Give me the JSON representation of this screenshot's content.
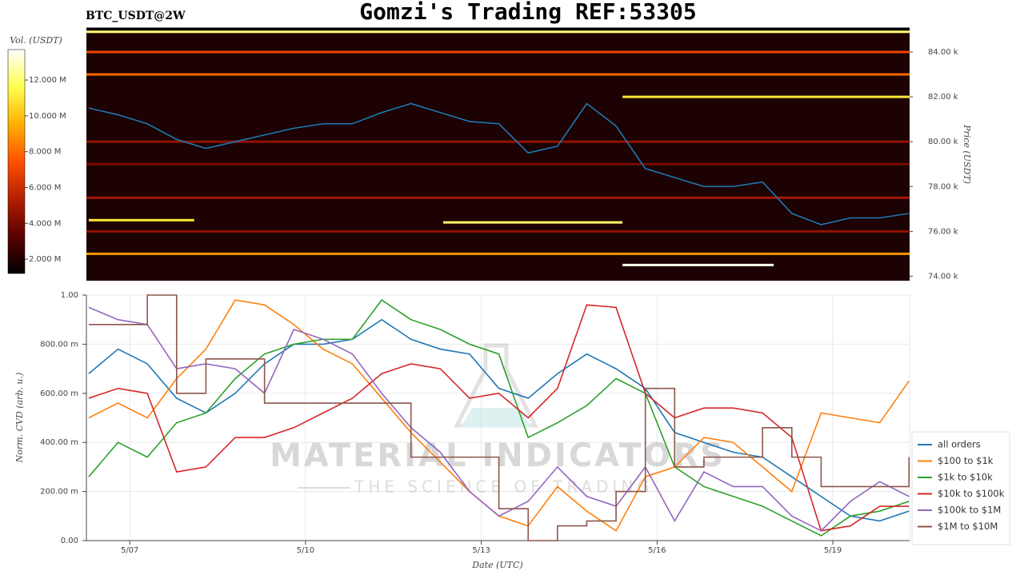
{
  "title": "Gomzi's Trading REF:53305",
  "chart_data": [
    {
      "type": "heatmap",
      "title": "BTC_USDT@2W",
      "y_label": "Price (USDT)",
      "colorbar_label": "Vol. (USDT)",
      "xlim": [
        6.26,
        20.31
      ],
      "ylim": [
        73800,
        85000
      ],
      "yticks": [
        {
          "value": 74000,
          "label": "74.00 k"
        },
        {
          "value": 76000,
          "label": "76.00 k"
        },
        {
          "value": 78000,
          "label": "78.00 k"
        },
        {
          "value": 80000,
          "label": "80.00 k"
        },
        {
          "value": 82000,
          "label": "82.00 k"
        },
        {
          "value": 84000,
          "label": "84.00 k"
        }
      ],
      "clim": [
        1200000,
        13700000
      ],
      "cticks": [
        {
          "value": 2000000,
          "label": "2.000 M"
        },
        {
          "value": 4000000,
          "label": "4.000 M"
        },
        {
          "value": 6000000,
          "label": "6.000 M"
        },
        {
          "value": 8000000,
          "label": "8.000 M"
        },
        {
          "value": 10000000,
          "label": "10.000 M"
        },
        {
          "value": 12000000,
          "label": "12.000 M"
        }
      ],
      "colormap": [
        "#000000",
        "#5a0000",
        "#b41e00",
        "#ff5000",
        "#ffb000",
        "#ffff50",
        "#ffffff"
      ],
      "background": "#1c0202",
      "walls": {
        "price": [
          84900,
          84000,
          83000,
          82000,
          80000,
          79000,
          77500,
          76500,
          76400,
          76000,
          75000,
          74500
        ],
        "start": [
          6.26,
          6.26,
          6.26,
          15.41,
          6.26,
          6.26,
          6.26,
          6.3,
          12.35,
          6.26,
          6.26,
          15.41
        ],
        "end": [
          20.31,
          20.31,
          20.31,
          20.31,
          20.31,
          20.31,
          20.31,
          8.1,
          15.41,
          20.31,
          20.31,
          17.99
        ],
        "volume": [
          12000000,
          7000000,
          8000000,
          11000000,
          4500000,
          4000000,
          5000000,
          11000000,
          12000000,
          4500000,
          9000000,
          13500000
        ]
      },
      "x": [
        6.3,
        6.8,
        7.3,
        7.8,
        8.3,
        8.8,
        9.3,
        9.8,
        10.3,
        10.8,
        11.3,
        11.8,
        12.3,
        12.8,
        13.3,
        13.8,
        14.3,
        14.8,
        15.3,
        15.8,
        16.3,
        16.8,
        17.3,
        17.8,
        18.3,
        18.8,
        19.3,
        19.8,
        20.3
      ],
      "series": [
        {
          "color": "#1f77b4",
          "values": [
            81500,
            81200,
            80800,
            80100,
            79700,
            80000,
            80300,
            80600,
            80800,
            80800,
            81300,
            81700,
            81300,
            80900,
            80800,
            79500,
            79800,
            81700,
            80700,
            78800,
            78400,
            78000,
            78000,
            78200,
            76800,
            76300,
            76600,
            76600,
            76800
          ]
        }
      ]
    },
    {
      "type": "line",
      "x_label": "Date (UTC)",
      "y_label": "Norm. CVD (arb. u.)",
      "grid": true,
      "legend": "right",
      "watermark": {
        "title": "MATERIAL INDICATORS",
        "subtitle": "THE SCIENCE OF TRADING"
      },
      "xlim": [
        6.26,
        20.31
      ],
      "ylim": [
        0,
        1
      ],
      "xticks": [
        {
          "value": 7,
          "label": "5/07"
        },
        {
          "value": 10,
          "label": "5/10"
        },
        {
          "value": 13,
          "label": "5/13"
        },
        {
          "value": 16,
          "label": "5/16"
        },
        {
          "value": 19,
          "label": "5/19"
        }
      ],
      "yticks": [
        {
          "value": 0,
          "label": "0.00"
        },
        {
          "value": 0.2,
          "label": "200.00 m"
        },
        {
          "value": 0.4,
          "label": "400.00 m"
        },
        {
          "value": 0.6,
          "label": "600.00 m"
        },
        {
          "value": 0.8,
          "label": "800.00 m"
        },
        {
          "value": 1,
          "label": "1.00"
        }
      ],
      "x": [
        6.3,
        6.8,
        7.3,
        7.8,
        8.3,
        8.8,
        9.3,
        9.8,
        10.3,
        10.8,
        11.3,
        11.8,
        12.3,
        12.8,
        13.3,
        13.8,
        14.3,
        14.8,
        15.3,
        15.8,
        16.3,
        16.8,
        17.3,
        17.8,
        18.3,
        18.8,
        19.3,
        19.8,
        20.3
      ],
      "series": [
        {
          "name": "all orders",
          "color": "#1f77b4",
          "values": [
            0.68,
            0.78,
            0.72,
            0.58,
            0.52,
            0.6,
            0.72,
            0.8,
            0.8,
            0.82,
            0.9,
            0.82,
            0.78,
            0.76,
            0.62,
            0.58,
            0.68,
            0.76,
            0.7,
            0.62,
            0.44,
            0.4,
            0.36,
            0.34,
            0.26,
            0.18,
            0.1,
            0.08,
            0.12
          ]
        },
        {
          "name": "$100 to $1k",
          "color": "#ff7f0e",
          "values": [
            0.5,
            0.56,
            0.5,
            0.66,
            0.78,
            0.98,
            0.96,
            0.88,
            0.78,
            0.72,
            0.58,
            0.44,
            0.32,
            0.2,
            0.1,
            0.06,
            0.22,
            0.12,
            0.04,
            0.26,
            0.3,
            0.42,
            0.4,
            0.3,
            0.2,
            0.52,
            0.5,
            0.48,
            0.65
          ]
        },
        {
          "name": "$1k to $10k",
          "color": "#2ca02c",
          "values": [
            0.26,
            0.4,
            0.34,
            0.48,
            0.52,
            0.66,
            0.76,
            0.8,
            0.82,
            0.82,
            0.98,
            0.9,
            0.86,
            0.8,
            0.76,
            0.42,
            0.48,
            0.55,
            0.66,
            0.6,
            0.3,
            0.22,
            0.18,
            0.14,
            0.08,
            0.02,
            0.1,
            0.12,
            0.16
          ]
        },
        {
          "name": "$10k to $100k",
          "color": "#d62728",
          "values": [
            0.58,
            0.62,
            0.6,
            0.28,
            0.3,
            0.42,
            0.42,
            0.46,
            0.52,
            0.58,
            0.68,
            0.72,
            0.7,
            0.58,
            0.6,
            0.5,
            0.62,
            0.96,
            0.95,
            0.6,
            0.5,
            0.54,
            0.54,
            0.52,
            0.42,
            0.04,
            0.06,
            0.14,
            0.14
          ]
        },
        {
          "name": "$100k to $1M",
          "color": "#9467bd",
          "values": [
            0.95,
            0.9,
            0.88,
            0.7,
            0.72,
            0.7,
            0.6,
            0.86,
            0.82,
            0.76,
            0.6,
            0.46,
            0.36,
            0.2,
            0.1,
            0.16,
            0.3,
            0.18,
            0.14,
            0.3,
            0.08,
            0.28,
            0.22,
            0.22,
            0.1,
            0.04,
            0.16,
            0.24,
            0.18
          ]
        },
        {
          "name": "$1M to $10M",
          "color": "#8c564b",
          "step": true,
          "values": [
            0.88,
            0.88,
            1,
            0.6,
            0.74,
            0.74,
            0.56,
            0.56,
            0.56,
            0.56,
            0.56,
            0.34,
            0.34,
            0.34,
            0.13,
            0,
            0.06,
            0.08,
            0.2,
            0.62,
            0.3,
            0.34,
            0.34,
            0.46,
            0.34,
            0.22,
            0.22,
            0.22,
            0.34
          ]
        }
      ]
    }
  ]
}
